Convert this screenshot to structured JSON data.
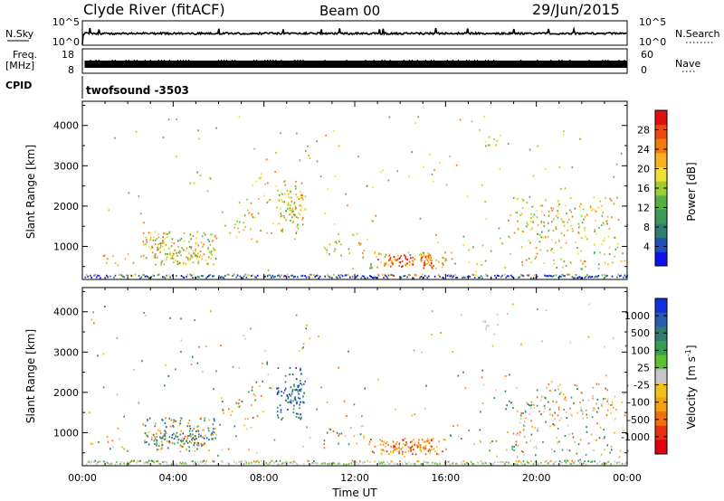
{
  "header": {
    "station": "Clyde River (fitACF)",
    "beam": "Beam 00",
    "date": "29/Jun/2015"
  },
  "top_panels": {
    "nsky": {
      "label": "N.Sky",
      "ticks": [
        "10^5",
        "10^0"
      ]
    },
    "nsearch": {
      "label": "N.Search",
      "ticks": [
        "10^5",
        "10^0"
      ]
    },
    "freq": {
      "label_line1": "Freq.",
      "label_line2": "[MHz]",
      "ticks": [
        "18",
        "8"
      ]
    },
    "nave": {
      "label": "Nave",
      "ticks": [
        "60",
        "0"
      ]
    },
    "cpid": {
      "label": "CPID",
      "program": "twofsound  -3503"
    }
  },
  "chart_data": [
    {
      "type": "heatmap",
      "quantity": "power",
      "ylabel": "Slant Range [km]",
      "y_ticks": [
        1000,
        2000,
        3000,
        4000
      ],
      "ylim": [
        180,
        4600
      ],
      "x_ticks": [
        "00:00",
        "04:00",
        "08:00",
        "12:00",
        "16:00",
        "20:00",
        "00:00"
      ],
      "xlim_hours": [
        0,
        24
      ],
      "colorbar": {
        "label": "Power [dB]",
        "ticks": [
          "4",
          "8",
          "12",
          "16",
          "20",
          "24",
          "28"
        ],
        "colors": [
          "#1010f0",
          "#2050b8",
          "#2e7e70",
          "#3c9a58",
          "#55b040",
          "#9ccd30",
          "#f0e030",
          "#f6b020",
          "#f47a10",
          "#ec4810",
          "#e01010"
        ]
      }
    },
    {
      "type": "heatmap",
      "quantity": "velocity",
      "ylabel": "Slant Range [km]",
      "y_ticks": [
        1000,
        2000,
        3000,
        4000
      ],
      "ylim": [
        180,
        4600
      ],
      "x_ticks": [
        "00:00",
        "04:00",
        "08:00",
        "12:00",
        "16:00",
        "20:00",
        "00:00"
      ],
      "xlim_hours": [
        0,
        24
      ],
      "xlabel": "Time UT",
      "colorbar": {
        "label": "Velocity",
        "label_units": "[m s",
        "label_exp": "-1",
        "label_close": "]",
        "ticks": [
          "1000",
          "500",
          "100",
          "25",
          "-25",
          "-100",
          "-500",
          "-1000"
        ],
        "colors": [
          "#1030e0",
          "#2a5ab0",
          "#2e7e6a",
          "#3a9c50",
          "#60c030",
          "#c8c8c8",
          "#f0c020",
          "#f4a010",
          "#f07010",
          "#e83010",
          "#e00010"
        ]
      }
    }
  ]
}
